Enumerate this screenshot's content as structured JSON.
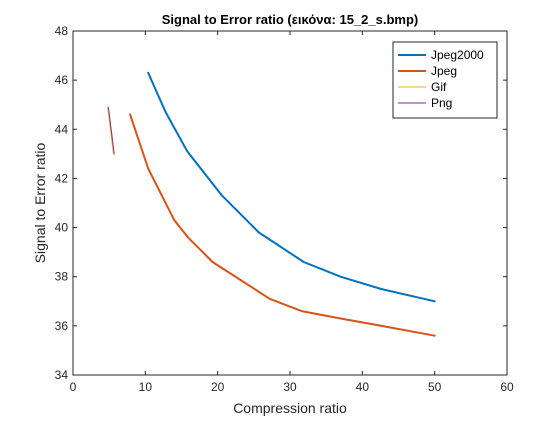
{
  "chart_data": {
    "type": "line",
    "title": "Signal to Error ratio (εικόνα: 15_2_s.bmp)",
    "xlabel": "Compression ratio",
    "ylabel": "Signal to Error ratio",
    "xlim": [
      0,
      60
    ],
    "ylim": [
      34,
      48
    ],
    "xticks": [
      0,
      10,
      20,
      30,
      40,
      50,
      60
    ],
    "yticks": [
      34,
      36,
      38,
      40,
      42,
      44,
      46,
      48
    ],
    "grid": false,
    "legend_position": "top-right",
    "series": [
      {
        "name": "Jpeg2000",
        "color": "#0072BD",
        "width": 2,
        "points": [
          [
            10.4,
            46.3
          ],
          [
            12.8,
            44.7
          ],
          [
            15.8,
            43.1
          ],
          [
            20.6,
            41.3
          ],
          [
            25.7,
            39.8
          ],
          [
            31.9,
            38.6
          ],
          [
            37.0,
            38.0
          ],
          [
            42.6,
            37.5
          ],
          [
            50.0,
            37.0
          ]
        ]
      },
      {
        "name": "Jpeg",
        "color": "#D95319",
        "width": 2,
        "points": [
          [
            7.9,
            44.6
          ],
          [
            10.4,
            42.4
          ],
          [
            14.0,
            40.3
          ],
          [
            15.9,
            39.6
          ],
          [
            19.3,
            38.6
          ],
          [
            27.2,
            37.1
          ],
          [
            31.6,
            36.6
          ],
          [
            37.0,
            36.3
          ],
          [
            43.6,
            35.95
          ],
          [
            50.0,
            35.6
          ]
        ]
      },
      {
        "name": "Gif",
        "color": "#EDB120",
        "width": 1,
        "points": [
          [
            4.8,
            44.9
          ],
          [
            5.6,
            43.0
          ]
        ]
      },
      {
        "name": "Png",
        "color": "#7E2F8E",
        "width": 1,
        "points": [
          [
            4.9,
            44.9
          ],
          [
            5.7,
            43.0
          ]
        ]
      }
    ]
  }
}
